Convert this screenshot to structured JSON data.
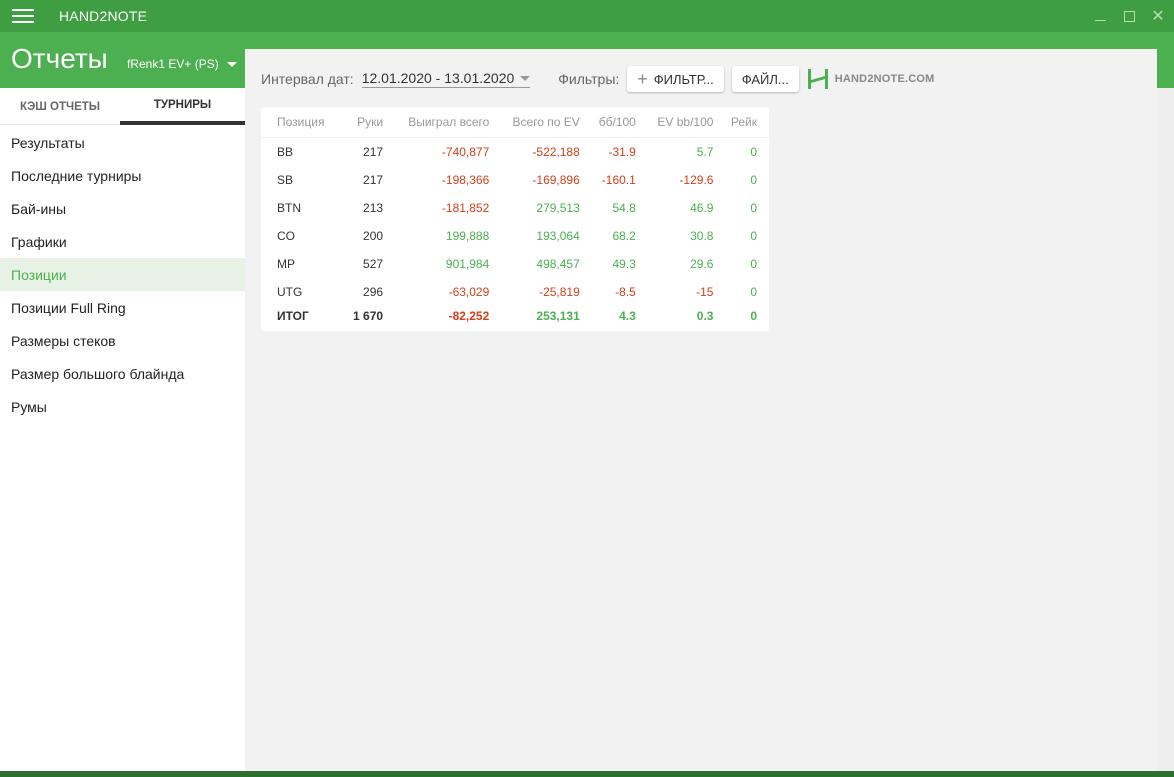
{
  "app": {
    "name": "HAND2NOTE"
  },
  "header": {
    "title": "Отчеты",
    "profile": "fRenk1 EV+ (PS)"
  },
  "sidebar": {
    "tabs": [
      {
        "label": "КЭШ ОТЧЕТЫ",
        "active": false
      },
      {
        "label": "ТУРНИРЫ",
        "active": true
      }
    ],
    "items": [
      {
        "label": "Результаты"
      },
      {
        "label": "Последние турниры"
      },
      {
        "label": "Бай-ины"
      },
      {
        "label": "Графики"
      },
      {
        "label": "Позиции",
        "active": true
      },
      {
        "label": "Позиции Full Ring"
      },
      {
        "label": "Размеры стеков"
      },
      {
        "label": "Размер большого блайнда"
      },
      {
        "label": "Румы"
      }
    ]
  },
  "toolbar": {
    "interval_label": "Интервал дат:",
    "interval_value": "12.01.2020 - 13.01.2020",
    "filters_label": "Фильтры:",
    "filter_button": "ФИЛЬТР...",
    "file_button": "ФАЙЛ...",
    "logo_text": "HAND2NOTE.COM"
  },
  "table": {
    "columns": [
      "Позиция",
      "Руки",
      "Выиграл всего",
      "Всего по EV",
      "бб/100",
      "EV bb/100",
      "Рейк"
    ],
    "rows": [
      [
        "BB",
        "217",
        "-740,877",
        "-522,188",
        "-31.9",
        "5.7",
        "0"
      ],
      [
        "SB",
        "217",
        "-198,366",
        "-169,896",
        "-160.1",
        "-129.6",
        "0"
      ],
      [
        "BTN",
        "213",
        "-181,852",
        "279,513",
        "54.8",
        "46.9",
        "0"
      ],
      [
        "CO",
        "200",
        "199,888",
        "193,064",
        "68.2",
        "30.8",
        "0"
      ],
      [
        "MP",
        "527",
        "901,984",
        "498,457",
        "49.3",
        "29.6",
        "0"
      ],
      [
        "UTG",
        "296",
        "-63,029",
        "-25,819",
        "-8.5",
        "-15",
        "0"
      ]
    ],
    "total": [
      "ИТОГ",
      "1 670",
      "-82,252",
      "253,131",
      "4.3",
      "0.3",
      "0"
    ]
  },
  "colors": {
    "brand_green": "#4caf50",
    "titlebar_green": "#3f9d42",
    "negative": "#d2401a",
    "positive": "#4caf50"
  }
}
